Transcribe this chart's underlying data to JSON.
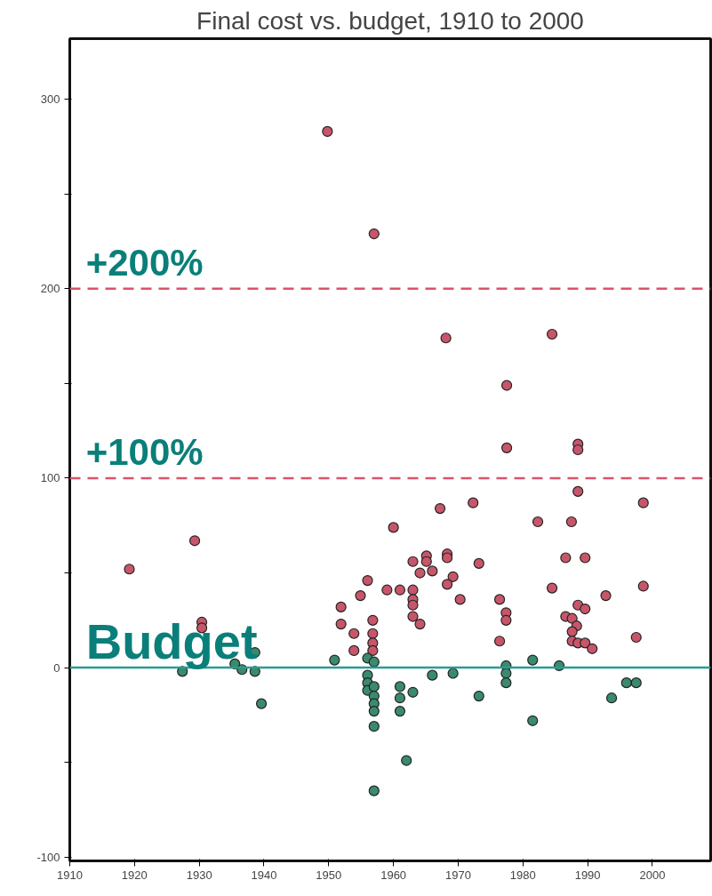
{
  "chart_data": {
    "type": "scatter",
    "title": "Final cost vs. budget, 1910 to 2000",
    "xlim": [
      1910,
      2009
    ],
    "xticks": [
      1910,
      1920,
      1930,
      1940,
      1950,
      1960,
      1970,
      1980,
      1990,
      2000
    ],
    "ylim": [
      -102,
      332
    ],
    "yticks": [
      -100,
      {
        "value": -50,
        "label": null
      },
      0,
      {
        "value": 50,
        "label": null
      },
      100,
      {
        "value": 150,
        "label": null
      },
      200,
      {
        "value": 250,
        "label": null
      },
      300
    ],
    "grid": false,
    "marker": "circle",
    "ref_lines": [
      {
        "axis": "y",
        "value": 200,
        "label": "+200%",
        "color": "#d9536b",
        "line_style": "dashed"
      },
      {
        "axis": "y",
        "value": 100,
        "label": "+100%",
        "color": "#d9536b",
        "line_style": "dashed"
      },
      {
        "axis": "y",
        "value": 0,
        "label": "Budget",
        "color": "#2a9d8f",
        "line_style": "solid"
      }
    ],
    "series": [
      {
        "color": "#c8566a",
        "x": [
          1919.2,
          1929.3,
          1930.4,
          1930.4,
          1949.8,
          1957,
          1968.1,
          1984.5,
          1977.5,
          1977.5,
          1988.5,
          1988.5,
          1988.5,
          1998.6,
          1982.3,
          1987.5,
          1986.6,
          1989.6,
          1984.5,
          1992.8,
          1998.6,
          1988.5,
          1989.6,
          1986.6,
          1987.6,
          1988.3,
          1987.6,
          1987.6,
          1988.5,
          1989.6,
          1990.7,
          1997.5,
          1967.2,
          1972.3,
          1960,
          1963,
          1965.1,
          1965.1,
          1968.3,
          1968.3,
          1973.2,
          1964.1,
          1966,
          1969.2,
          1968.3,
          1956,
          1954.9,
          1959,
          1961,
          1963,
          1963,
          1963,
          1963,
          1964.1,
          1970.3,
          1951.9,
          1951.9,
          1953.9,
          1953.9,
          1956.8,
          1956.8,
          1956.8,
          1956.8,
          1976.4,
          1977.4,
          1977.4,
          1976.4
        ],
        "values": [
          52,
          67,
          24,
          21,
          283,
          229,
          174,
          176,
          149,
          116,
          118,
          115,
          93,
          87,
          77,
          77,
          58,
          58,
          42,
          38,
          43,
          33,
          31,
          27,
          26,
          22,
          19,
          14,
          13,
          13,
          10,
          16,
          84,
          87,
          74,
          56,
          59,
          56,
          60,
          58,
          55,
          50,
          51,
          48,
          44,
          46,
          38,
          41,
          41,
          41,
          36,
          33,
          27,
          23,
          36,
          32,
          23,
          18,
          9,
          25,
          18,
          13,
          9,
          36,
          29,
          25,
          14
        ]
      },
      {
        "color": "#3a8a6e",
        "x": [
          1950.9,
          1956,
          1957,
          1956,
          1956,
          1956,
          1957,
          1957,
          1957,
          1957,
          1957,
          1957,
          1961,
          1961,
          1961,
          1963,
          1962,
          1966,
          1969.2,
          1973.2,
          1977.4,
          1977.4,
          1977.4,
          1981.5,
          1985.6,
          1996,
          1997.5,
          1993.7,
          1981.5,
          1927.4,
          1935.5,
          1936.6,
          1938.6,
          1938.6,
          1939.6
        ],
        "values": [
          4,
          5,
          3,
          -4,
          -8,
          -12,
          -10,
          -15,
          -19,
          -23,
          -31,
          -65,
          -10,
          -16,
          -23,
          -13,
          -49,
          -4,
          -3,
          -15,
          1,
          -3,
          -8,
          4,
          1,
          -8,
          -8,
          -16,
          -28,
          -2,
          2,
          -1,
          8,
          -2,
          -19
        ]
      }
    ]
  }
}
